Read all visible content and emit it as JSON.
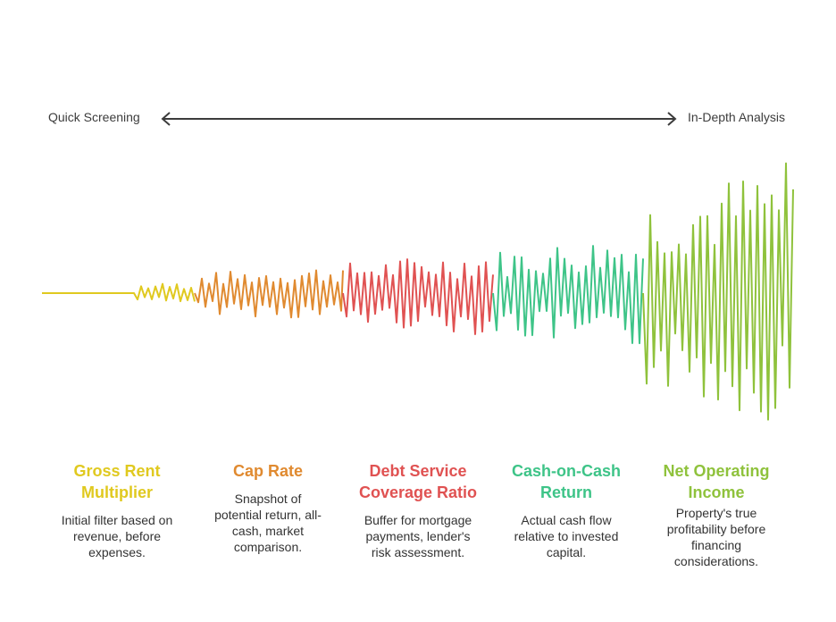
{
  "axis": {
    "left_label": "Quick Screening",
    "right_label": "In-Depth Analysis"
  },
  "stages": [
    {
      "title_line1": "Gross Rent",
      "title_line2": "Multiplier",
      "description": "Initial filter based on revenue, before expenses.",
      "color": "#e0c91f"
    },
    {
      "title_line1": "Cap Rate",
      "title_line2": "",
      "description": "Snapshot of potential return, all-cash, market comparison.",
      "color": "#e08a30"
    },
    {
      "title_line1": "Debt Service",
      "title_line2": "Coverage Ratio",
      "description": "Buffer for mortgage payments, lender's risk assessment.",
      "color": "#e05252"
    },
    {
      "title_line1": "Cash-on-Cash",
      "title_line2": "Return",
      "description": "Actual cash flow relative to invested capital.",
      "color": "#3ec488"
    },
    {
      "title_line1": "Net Operating",
      "title_line2": "Income",
      "description": "Property's true profitability before financing considerations.",
      "color": "#8fc23c"
    }
  ],
  "colors": {
    "arrow": "#3c3c3c",
    "text": "#333333"
  }
}
